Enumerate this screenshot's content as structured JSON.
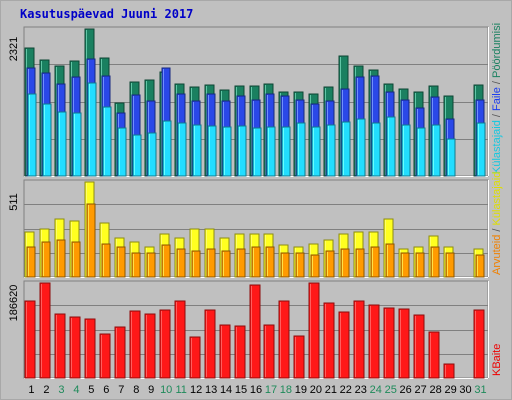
{
  "chart_data": {
    "type": "bar",
    "title": "Kasutuspäevad Juuni 2017",
    "categories": [
      "1",
      "2",
      "3",
      "4",
      "5",
      "6",
      "7",
      "8",
      "9",
      "10",
      "11",
      "12",
      "13",
      "14",
      "15",
      "16",
      "17",
      "18",
      "19",
      "20",
      "21",
      "22",
      "23",
      "24",
      "25",
      "26",
      "27",
      "28",
      "29",
      "30",
      "31"
    ],
    "weekend_days": [
      "3",
      "4",
      "10",
      "11",
      "17",
      "18",
      "24",
      "25",
      "31"
    ],
    "panels": [
      {
        "name": "top",
        "max_label": "2321",
        "ymax": 2321,
        "right_labels": [
          "Pöördumisi",
          "/",
          "Faile",
          "/",
          "Külastajaid"
        ],
        "series": [
          {
            "name": "Pöördumisi",
            "color": "#1a8060",
            "values": [
              2021,
              1830,
              1730,
              1810,
              2321,
              1860,
              1160,
              1480,
              1520,
              1640,
              1450,
              1400,
              1440,
              1360,
              1420,
              1420,
              1450,
              1330,
              1330,
              1300,
              1410,
              1900,
              1740,
              1670,
              1450,
              1370,
              1320,
              1420,
              1270,
              null,
              1440
            ]
          },
          {
            "name": "Faile",
            "color": "#2a48e8",
            "values": [
              1700,
              1620,
              1450,
              1560,
              1840,
              1580,
              1000,
              1280,
              1180,
              1700,
              1300,
              1190,
              1300,
              1190,
              1270,
              1200,
              1300,
              1260,
              1200,
              1130,
              1180,
              1370,
              1570,
              1580,
              1320,
              1200,
              1080,
              1240,
              900,
              null,
              1200
            ]
          },
          {
            "name": "Külastajaid",
            "color": "#22ddff",
            "values": [
              1290,
              1130,
              1010,
              1000,
              1470,
              1090,
              750,
              650,
              680,
              870,
              830,
              800,
              790,
              780,
              790,
              750,
              780,
              780,
              840,
              770,
              800,
              860,
              900,
              830,
              930,
              810,
              760,
              800,
              590,
              null,
              840
            ]
          }
        ]
      },
      {
        "name": "middle",
        "max_label": "511",
        "ymax": 511,
        "right_labels": [
          "Külastajaid",
          "/",
          "Arvuteid"
        ],
        "series": [
          {
            "name": "Külastajaid",
            "color": "#ffff20",
            "values": [
              240,
              260,
              310,
              300,
              511,
              290,
              210,
              190,
              160,
              230,
              210,
              260,
              260,
              210,
              230,
              230,
              230,
              170,
              160,
              180,
              200,
              230,
              240,
              240,
              310,
              150,
              160,
              220,
              160,
              null,
              150
            ]
          },
          {
            "name": "Arvuteid",
            "color": "#ff9a00",
            "values": [
              160,
              190,
              200,
              190,
              390,
              180,
              160,
              130,
              130,
              170,
              150,
              140,
              150,
              140,
              150,
              160,
              160,
              130,
              130,
              120,
              140,
              150,
              150,
              160,
              180,
              130,
              130,
              160,
              130,
              null,
              120
            ]
          }
        ]
      },
      {
        "name": "bottom",
        "max_label": "186620",
        "ymax": 186620,
        "right_labels": [
          "KBaite"
        ],
        "series": [
          {
            "name": "KBaite",
            "color": "#ff1818",
            "values": [
              152000,
              186620,
              126000,
              120000,
              116000,
              86000,
              101000,
              131000,
              125000,
              134000,
              152000,
              80000,
              133000,
              105000,
              102000,
              182000,
              104000,
              152000,
              82000,
              186620,
              148000,
              130000,
              152000,
              144000,
              138000,
              135000,
              124000,
              91000,
              27000,
              null,
              134000
            ]
          }
        ]
      }
    ],
    "grid": true,
    "legend": "right"
  }
}
